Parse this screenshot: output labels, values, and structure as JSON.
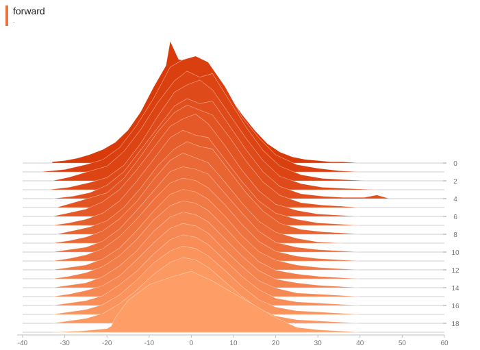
{
  "card": {
    "title": "forward",
    "subtitle": "."
  },
  "colors": {
    "accent": "#e8733d",
    "ridge_back": "#d83a0a",
    "ridge_front": "#fe9d66",
    "baseline": "#9e9e9e",
    "axis_text": "#757575",
    "outline": "#ffffff"
  },
  "chart_data": {
    "type": "area",
    "title": "",
    "xlabel": "",
    "ylabel": "",
    "xlim": [
      -40,
      60
    ],
    "x_ticks": [
      -40,
      -30,
      -20,
      -10,
      0,
      10,
      20,
      30,
      40,
      50,
      60
    ],
    "x_tick_labels": [
      "-40",
      "-30",
      "-20",
      "-10",
      "0",
      "10",
      "20",
      "30",
      "40",
      "50",
      "60"
    ],
    "step_ticks": [
      0,
      2,
      4,
      6,
      8,
      10,
      12,
      14,
      16,
      18
    ],
    "step_tick_labels": [
      "0",
      "2",
      "4",
      "6",
      "8",
      "10",
      "12",
      "14",
      "16",
      "18"
    ],
    "peak_value": 1.0,
    "grid": false,
    "legend": "none",
    "series": [
      {
        "step": 0,
        "x": [
          -33,
          -30,
          -27,
          -24,
          -21,
          -18,
          -15,
          -12,
          -9,
          -6,
          -5,
          -3,
          0,
          3,
          6,
          9,
          12,
          15,
          18,
          21,
          24,
          27,
          30,
          33,
          36,
          40
        ],
        "y": [
          0.01,
          0.02,
          0.04,
          0.07,
          0.11,
          0.17,
          0.27,
          0.42,
          0.62,
          0.8,
          1.0,
          0.85,
          0.83,
          0.8,
          0.68,
          0.55,
          0.4,
          0.27,
          0.16,
          0.09,
          0.05,
          0.03,
          0.02,
          0.01,
          0.01,
          0.0
        ]
      },
      {
        "step": 1,
        "x": [
          -36,
          -30,
          -25,
          -21,
          -17,
          -13,
          -9,
          -5,
          -2,
          1,
          4,
          8,
          12,
          16,
          20,
          25,
          30,
          35,
          40
        ],
        "y": [
          0.0,
          0.02,
          0.06,
          0.1,
          0.2,
          0.38,
          0.6,
          0.86,
          0.92,
          0.95,
          0.9,
          0.7,
          0.45,
          0.28,
          0.14,
          0.06,
          0.03,
          0.01,
          0.0
        ]
      },
      {
        "step": 2,
        "x": [
          -33,
          -29,
          -25,
          -20,
          -16,
          -12,
          -8,
          -4,
          -1,
          2,
          5,
          9,
          13,
          17,
          21,
          26,
          31,
          36,
          42
        ],
        "y": [
          0.0,
          0.03,
          0.07,
          0.12,
          0.24,
          0.42,
          0.64,
          0.82,
          0.9,
          0.85,
          0.88,
          0.66,
          0.44,
          0.25,
          0.12,
          0.05,
          0.02,
          0.01,
          0.0
        ]
      },
      {
        "step": 3,
        "x": [
          -34,
          -29,
          -24,
          -20,
          -16,
          -12,
          -8,
          -4,
          -1,
          2,
          5,
          9,
          13,
          17,
          21,
          26,
          31,
          37,
          44
        ],
        "y": [
          0.0,
          0.02,
          0.06,
          0.1,
          0.2,
          0.38,
          0.6,
          0.8,
          0.86,
          0.9,
          0.82,
          0.62,
          0.42,
          0.24,
          0.11,
          0.05,
          0.02,
          0.01,
          0.0
        ]
      },
      {
        "step": 4,
        "x": [
          -33,
          -28,
          -24,
          -20,
          -16,
          -12,
          -8,
          -4,
          -1,
          2,
          5,
          9,
          13,
          17,
          21,
          26,
          31,
          36,
          41,
          44,
          47
        ],
        "y": [
          0.0,
          0.02,
          0.05,
          0.11,
          0.22,
          0.4,
          0.58,
          0.76,
          0.82,
          0.78,
          0.8,
          0.6,
          0.4,
          0.22,
          0.1,
          0.04,
          0.02,
          0.01,
          0.01,
          0.03,
          0.0
        ]
      },
      {
        "step": 5,
        "x": [
          -32,
          -28,
          -24,
          -20,
          -16,
          -12,
          -8,
          -4,
          -1,
          2,
          5,
          9,
          13,
          17,
          21,
          26,
          31,
          36,
          40
        ],
        "y": [
          0.0,
          0.04,
          0.08,
          0.12,
          0.24,
          0.42,
          0.62,
          0.78,
          0.84,
          0.8,
          0.76,
          0.58,
          0.38,
          0.21,
          0.1,
          0.04,
          0.02,
          0.01,
          0.0
        ]
      },
      {
        "step": 6,
        "x": [
          -33,
          -29,
          -25,
          -21,
          -17,
          -13,
          -9,
          -5,
          -2,
          1,
          4,
          8,
          12,
          16,
          20,
          25,
          30,
          35,
          40
        ],
        "y": [
          0.0,
          0.03,
          0.06,
          0.12,
          0.22,
          0.38,
          0.56,
          0.74,
          0.8,
          0.84,
          0.76,
          0.58,
          0.38,
          0.21,
          0.1,
          0.05,
          0.02,
          0.01,
          0.0
        ]
      },
      {
        "step": 7,
        "x": [
          -33,
          -29,
          -25,
          -21,
          -17,
          -13,
          -9,
          -5,
          -2,
          1,
          4,
          8,
          12,
          16,
          20,
          25,
          30,
          35,
          40
        ],
        "y": [
          0.0,
          0.02,
          0.05,
          0.1,
          0.2,
          0.36,
          0.54,
          0.72,
          0.78,
          0.74,
          0.72,
          0.54,
          0.36,
          0.2,
          0.1,
          0.05,
          0.02,
          0.01,
          0.0
        ]
      },
      {
        "step": 8,
        "x": [
          -32,
          -28,
          -24,
          -20,
          -16,
          -12,
          -8,
          -4,
          -1,
          2,
          5,
          9,
          13,
          17,
          21,
          26,
          31,
          36,
          40
        ],
        "y": [
          0.0,
          0.03,
          0.06,
          0.11,
          0.22,
          0.38,
          0.56,
          0.7,
          0.76,
          0.72,
          0.7,
          0.52,
          0.34,
          0.19,
          0.09,
          0.04,
          0.02,
          0.01,
          0.0
        ]
      },
      {
        "step": 9,
        "x": [
          -33,
          -29,
          -25,
          -21,
          -17,
          -13,
          -9,
          -5,
          -2,
          1,
          4,
          8,
          12,
          16,
          20,
          25,
          30,
          36
        ],
        "y": [
          0.0,
          0.02,
          0.05,
          0.1,
          0.2,
          0.34,
          0.52,
          0.68,
          0.74,
          0.7,
          0.66,
          0.5,
          0.33,
          0.18,
          0.09,
          0.04,
          0.01,
          0.0
        ]
      },
      {
        "step": 10,
        "x": [
          -33,
          -29,
          -25,
          -21,
          -17,
          -13,
          -9,
          -5,
          -2,
          1,
          4,
          8,
          12,
          16,
          20,
          25,
          30,
          35,
          40
        ],
        "y": [
          0.0,
          0.02,
          0.04,
          0.09,
          0.19,
          0.34,
          0.5,
          0.66,
          0.7,
          0.68,
          0.64,
          0.48,
          0.32,
          0.17,
          0.08,
          0.04,
          0.02,
          0.01,
          0.0
        ]
      },
      {
        "step": 11,
        "x": [
          -33,
          -29,
          -25,
          -21,
          -17,
          -13,
          -9,
          -5,
          -2,
          1,
          4,
          8,
          12,
          16,
          20,
          25,
          30,
          35,
          40
        ],
        "y": [
          0.0,
          0.02,
          0.05,
          0.1,
          0.2,
          0.34,
          0.5,
          0.64,
          0.68,
          0.66,
          0.6,
          0.46,
          0.3,
          0.16,
          0.08,
          0.04,
          0.02,
          0.01,
          0.0
        ]
      },
      {
        "step": 12,
        "x": [
          -33,
          -29,
          -25,
          -21,
          -17,
          -13,
          -9,
          -5,
          -2,
          1,
          4,
          8,
          12,
          16,
          20,
          25,
          30,
          35,
          40
        ],
        "y": [
          0.0,
          0.02,
          0.04,
          0.09,
          0.18,
          0.32,
          0.48,
          0.62,
          0.66,
          0.64,
          0.58,
          0.44,
          0.28,
          0.15,
          0.08,
          0.04,
          0.02,
          0.01,
          0.0
        ]
      },
      {
        "step": 13,
        "x": [
          -33,
          -29,
          -25,
          -21,
          -17,
          -13,
          -9,
          -5,
          -2,
          1,
          4,
          8,
          12,
          16,
          20,
          25,
          30,
          35,
          40
        ],
        "y": [
          0.0,
          0.02,
          0.05,
          0.1,
          0.19,
          0.32,
          0.48,
          0.6,
          0.64,
          0.62,
          0.56,
          0.42,
          0.27,
          0.14,
          0.07,
          0.04,
          0.02,
          0.01,
          0.0
        ]
      },
      {
        "step": 14,
        "x": [
          -33,
          -29,
          -25,
          -21,
          -17,
          -13,
          -9,
          -5,
          -2,
          1,
          4,
          8,
          12,
          16,
          20,
          25,
          30,
          35,
          40
        ],
        "y": [
          0.0,
          0.02,
          0.04,
          0.09,
          0.18,
          0.3,
          0.46,
          0.58,
          0.62,
          0.6,
          0.54,
          0.4,
          0.26,
          0.14,
          0.07,
          0.04,
          0.02,
          0.01,
          0.0
        ]
      },
      {
        "step": 15,
        "x": [
          -33,
          -29,
          -25,
          -21,
          -17,
          -13,
          -9,
          -5,
          -2,
          1,
          4,
          8,
          12,
          16,
          20,
          25,
          30,
          35,
          40
        ],
        "y": [
          0.0,
          0.02,
          0.05,
          0.09,
          0.17,
          0.3,
          0.44,
          0.56,
          0.6,
          0.58,
          0.52,
          0.38,
          0.25,
          0.13,
          0.07,
          0.03,
          0.02,
          0.01,
          0.0
        ]
      },
      {
        "step": 16,
        "x": [
          -33,
          -29,
          -25,
          -21,
          -17,
          -13,
          -9,
          -5,
          -2,
          1,
          4,
          8,
          12,
          16,
          20,
          25,
          30,
          35,
          40
        ],
        "y": [
          0.0,
          0.02,
          0.04,
          0.08,
          0.17,
          0.28,
          0.42,
          0.54,
          0.58,
          0.56,
          0.5,
          0.37,
          0.24,
          0.13,
          0.06,
          0.03,
          0.02,
          0.01,
          0.0
        ]
      },
      {
        "step": 17,
        "x": [
          -33,
          -29,
          -25,
          -21,
          -17,
          -13,
          -9,
          -5,
          -2,
          1,
          4,
          8,
          12,
          16,
          20,
          25,
          30,
          35,
          40
        ],
        "y": [
          0.0,
          0.02,
          0.04,
          0.08,
          0.16,
          0.28,
          0.42,
          0.52,
          0.56,
          0.54,
          0.48,
          0.36,
          0.23,
          0.12,
          0.06,
          0.03,
          0.02,
          0.01,
          0.0
        ]
      },
      {
        "step": 18,
        "x": [
          -33,
          -29,
          -25,
          -21,
          -17,
          -13,
          -9,
          -5,
          -2,
          1,
          4,
          8,
          12,
          16,
          20,
          25,
          30,
          35,
          40
        ],
        "y": [
          0.0,
          0.02,
          0.04,
          0.08,
          0.16,
          0.27,
          0.4,
          0.5,
          0.54,
          0.52,
          0.46,
          0.34,
          0.22,
          0.12,
          0.06,
          0.03,
          0.02,
          0.01,
          0.0
        ]
      },
      {
        "step": 19,
        "x": [
          -33,
          -26,
          -20,
          -19,
          -18,
          -15,
          -10,
          -5,
          0,
          5,
          10,
          15,
          20,
          25,
          30,
          35,
          40
        ],
        "y": [
          0.0,
          0.01,
          0.03,
          0.05,
          0.12,
          0.26,
          0.39,
          0.45,
          0.5,
          0.42,
          0.32,
          0.22,
          0.12,
          0.04,
          0.02,
          0.01,
          0.0
        ]
      }
    ]
  }
}
